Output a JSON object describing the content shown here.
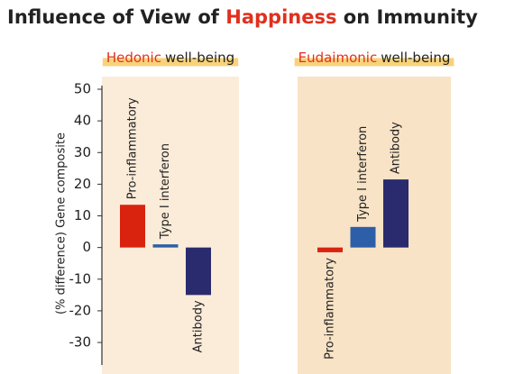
{
  "chart_data": {
    "type": "bar",
    "title_parts": [
      "Influence of View of ",
      "Happiness",
      " on Immunity"
    ],
    "y_label": "(% difference) Gene composite",
    "categories": [
      [
        "Hedonic",
        "well-being"
      ],
      [
        "Eudaimonic",
        "well-being"
      ]
    ],
    "series": [
      {
        "name": "Pro-inflammatory",
        "color": "#d9230f",
        "values": [
          13.5,
          -1.5
        ]
      },
      {
        "name": "Type I interferon",
        "color": "#2d5fa8",
        "values": [
          1,
          6.5
        ]
      },
      {
        "name": "Antibody",
        "color": "#2a2a6e",
        "values": [
          -15,
          21.5
        ]
      }
    ],
    "ylim": [
      -35,
      50
    ],
    "yticks": [
      -30,
      -20,
      -10,
      0,
      10,
      20,
      30,
      40,
      50
    ]
  }
}
